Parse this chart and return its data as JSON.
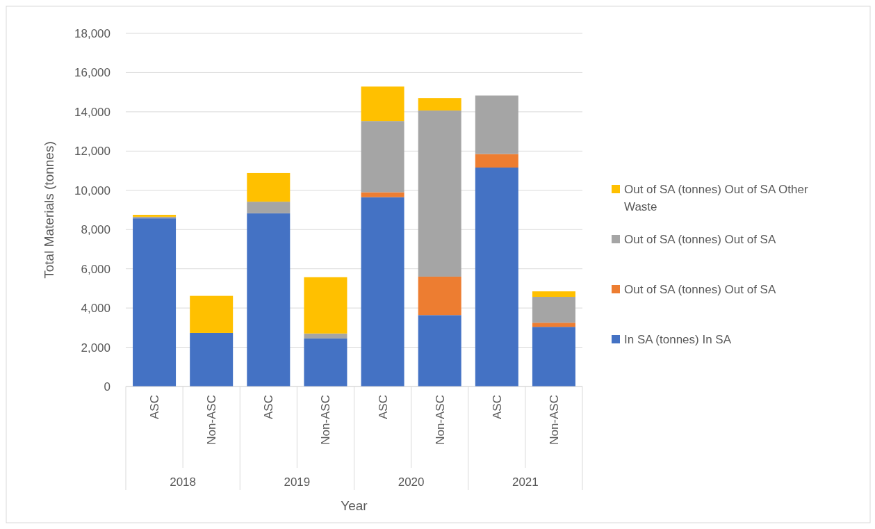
{
  "chart_data": {
    "type": "bar",
    "stacked": true,
    "xlabel": "Year",
    "ylabel": "Total Materials (tonnes)",
    "categories": [
      "ASC",
      "Non-ASC",
      "ASC",
      "Non-ASC",
      "ASC",
      "Non-ASC",
      "ASC",
      "Non-ASC"
    ],
    "annotations": [
      "2018",
      "2019",
      "2020",
      "2021"
    ],
    "series": [
      {
        "name": "In SA (tonnes) In SA",
        "color": "#4472c4",
        "values": [
          8570,
          2730,
          8830,
          2450,
          9650,
          3640,
          11160,
          3040
        ]
      },
      {
        "name": "Out of SA (tonnes) Out of SA",
        "color": "#ed7d31",
        "values": [
          null,
          null,
          null,
          null,
          250,
          1960,
          690,
          210
        ]
      },
      {
        "name": "Out of SA (tonnes) Out of SA",
        "color": "#a5a5a5",
        "values": [
          80,
          null,
          590,
          250,
          3630,
          8470,
          2980,
          1320
        ]
      },
      {
        "name": "Out of SA (tonnes) Out of SA Other Waste",
        "color": "#ffc000",
        "values": [
          100,
          1890,
          1460,
          2870,
          1760,
          630,
          null,
          280
        ]
      }
    ],
    "ylim": [
      0,
      18000
    ],
    "yticks": [
      {
        "value": 0,
        "label": "0"
      },
      {
        "value": 2000,
        "label": "2,000"
      },
      {
        "value": 4000,
        "label": "4,000"
      },
      {
        "value": 6000,
        "label": "6,000"
      },
      {
        "value": 8000,
        "label": "8,000"
      },
      {
        "value": 10000,
        "label": "10,000"
      },
      {
        "value": 12000,
        "label": "12,000"
      },
      {
        "value": 14000,
        "label": "14,000"
      },
      {
        "value": 16000,
        "label": "16,000"
      },
      {
        "value": 18000,
        "label": "18,000"
      }
    ],
    "grid": "y",
    "legend": "right"
  }
}
